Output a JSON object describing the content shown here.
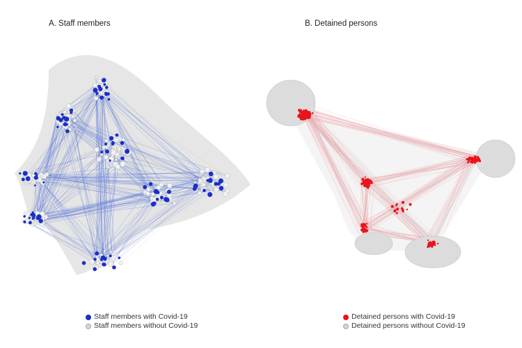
{
  "panels": [
    {
      "title": "A. Staff members"
    },
    {
      "title": "B. Detained persons"
    }
  ],
  "legend_a": [
    {
      "label": "Staff members with Covid-19",
      "color": "#1a2fc8"
    },
    {
      "label": "Staff members without Covid-19",
      "color": "#d4d4d4"
    }
  ],
  "legend_b": [
    {
      "label": "Detained persons with Covid-19",
      "color": "#e8141c"
    },
    {
      "label": "Detained persons without Covid-19",
      "color": "#d4d4d4"
    }
  ],
  "colors": {
    "staff_positive": "#1a2fc8",
    "staff_edge": "#4a6fe0",
    "detained_positive": "#e8141c",
    "detained_edge": "#f07a84",
    "negative_node": "#d4d4d4",
    "negative_edge": "#cfcfcf"
  }
}
